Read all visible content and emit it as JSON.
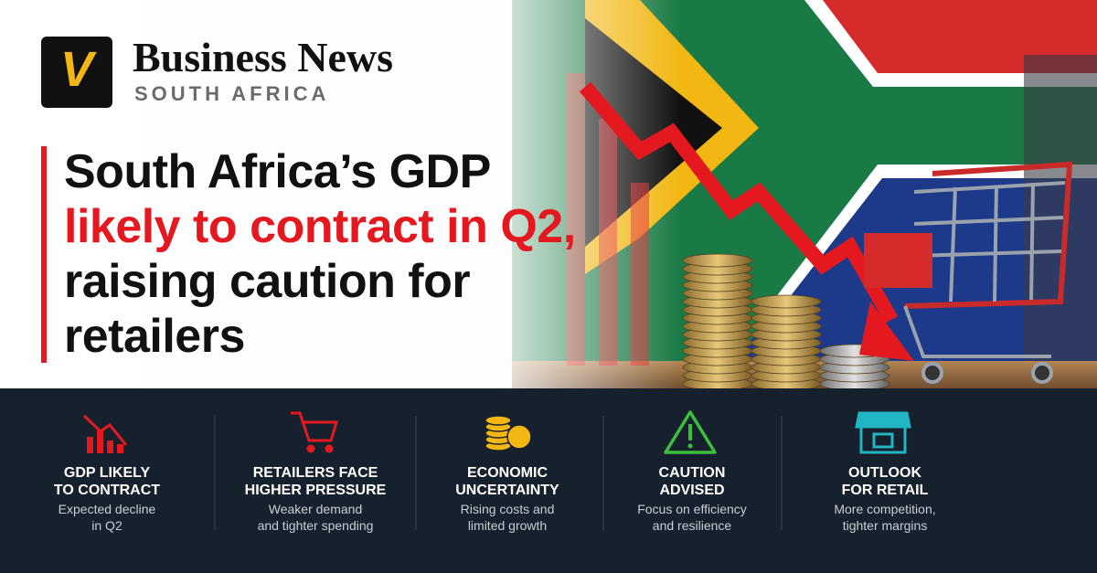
{
  "header": {
    "logo_letter": "V",
    "brand": "Business News",
    "region": "SOUTH AFRICA"
  },
  "headline": {
    "lines": [
      "South Africa’s GDP",
      "likely to contract in Q2,",
      "raising caution for",
      "retailers"
    ]
  },
  "features": [
    {
      "title": [
        "GDP LIKELY",
        "TO CONTRACT"
      ],
      "description": [
        "Expected decline",
        "in Q2"
      ]
    },
    {
      "title": [
        "RETAILERS FACE",
        "HIGHER PRESSURE"
      ],
      "description": [
        "Weaker demand",
        "and tighter spending"
      ]
    },
    {
      "title": [
        "ECONOMIC",
        "UNCERTAINTY"
      ],
      "description": [
        "Rising costs and",
        "limited growth"
      ]
    },
    {
      "title": [
        "CAUTION",
        "ADVISED"
      ],
      "description": [
        "Focus on efficiency",
        "and resilience"
      ]
    },
    {
      "title": [
        "OUTLOOK",
        "FOR RETAIL"
      ],
      "description": [
        "More competition,",
        "tighter margins"
      ]
    }
  ]
}
